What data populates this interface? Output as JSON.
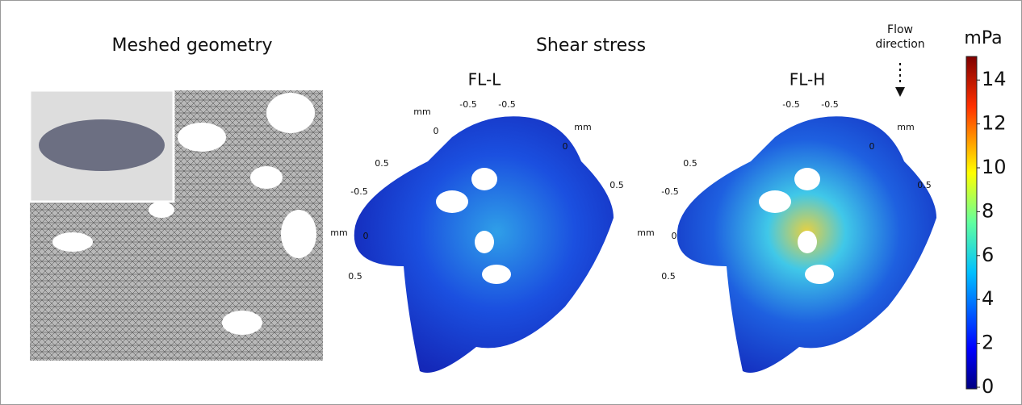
{
  "titles": {
    "meshed": "Meshed geometry",
    "shear": "Shear stress"
  },
  "panels": [
    {
      "title": "FL-L",
      "axis_labels": [
        "mm",
        "-0.5",
        "-0.5",
        "0",
        "mm",
        "0",
        "0.5",
        "-0.5",
        "0.5",
        "mm",
        "0",
        "0.5"
      ]
    },
    {
      "title": "FL-H",
      "axis_labels": [
        "-0.5",
        "-0.5",
        "mm",
        "0",
        "0.5",
        "-0.5",
        "0.5",
        "mm",
        "0",
        "0.5"
      ]
    }
  ],
  "flow": {
    "line1": "Flow",
    "line2": "direction"
  },
  "colorbar": {
    "unit": "mPa",
    "range": [
      0,
      15
    ],
    "ticks": [
      0,
      2,
      4,
      6,
      8,
      10,
      12,
      14
    ]
  }
}
